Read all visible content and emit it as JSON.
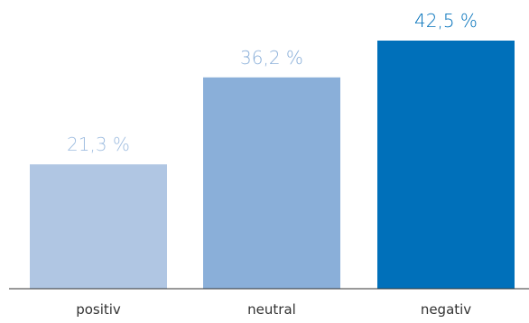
{
  "chart_data": {
    "type": "bar",
    "categories": [
      "positiv",
      "neutral",
      "negativ"
    ],
    "values": [
      21.3,
      36.2,
      42.5
    ],
    "value_labels": [
      "21,3 %",
      "36,2 %",
      "42,5 %"
    ],
    "colors": [
      "#b0c6e3",
      "#8aafd9",
      "#0070ba"
    ],
    "label_colors": [
      "#9fbde0",
      "#8aafd9",
      "#0070ba"
    ],
    "title": "",
    "xlabel": "",
    "ylabel": "",
    "ylim": [
      0,
      42.5
    ],
    "grid": false,
    "legend": "none"
  }
}
